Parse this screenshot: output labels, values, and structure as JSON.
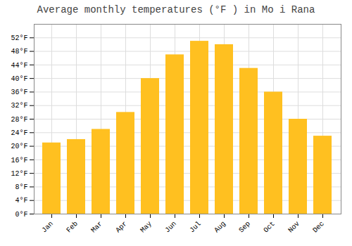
{
  "chart_data": {
    "type": "bar",
    "title": "Average monthly temperatures (°F ) in Mo i Rana",
    "categories": [
      "Jan",
      "Feb",
      "Mar",
      "Apr",
      "May",
      "Jun",
      "Jul",
      "Aug",
      "Sep",
      "Oct",
      "Nov",
      "Dec"
    ],
    "values": [
      21,
      22,
      25,
      30,
      40,
      47,
      51,
      50,
      43,
      36,
      28,
      23
    ],
    "color": "#FFC020",
    "ylim": [
      0,
      56
    ],
    "yticks": [
      {
        "value": 0,
        "label": "0°F"
      },
      {
        "value": 4,
        "label": "4°F"
      },
      {
        "value": 8,
        "label": "8°F"
      },
      {
        "value": 12,
        "label": "12°F"
      },
      {
        "value": 16,
        "label": "16°F"
      },
      {
        "value": 20,
        "label": "20°F"
      },
      {
        "value": 24,
        "label": "24°F"
      },
      {
        "value": 28,
        "label": "28°F"
      },
      {
        "value": 32,
        "label": "32°F"
      },
      {
        "value": 36,
        "label": "36°F"
      },
      {
        "value": 40,
        "label": "40°F"
      },
      {
        "value": 44,
        "label": "44°F"
      },
      {
        "value": 48,
        "label": "48°F"
      },
      {
        "value": 52,
        "label": "52°F"
      }
    ],
    "grid": true
  }
}
